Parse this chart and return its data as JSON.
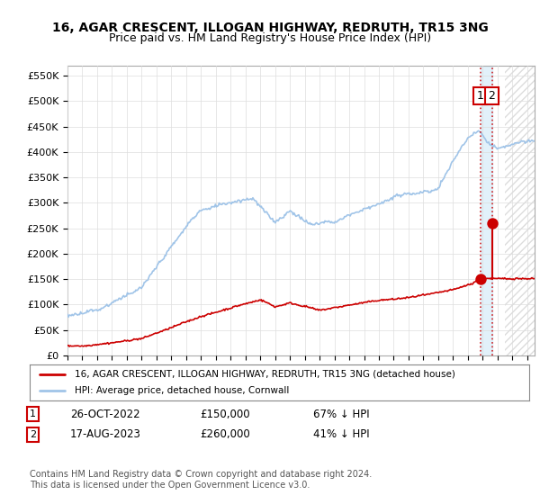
{
  "title_line1": "16, AGAR CRESCENT, ILLOGAN HIGHWAY, REDRUTH, TR15 3NG",
  "title_line2": "Price paid vs. HM Land Registry's House Price Index (HPI)",
  "ylabel_ticks": [
    "£0",
    "£50K",
    "£100K",
    "£150K",
    "£200K",
    "£250K",
    "£300K",
    "£350K",
    "£400K",
    "£450K",
    "£500K",
    "£550K"
  ],
  "ytick_values": [
    0,
    50000,
    100000,
    150000,
    200000,
    250000,
    300000,
    350000,
    400000,
    450000,
    500000,
    550000
  ],
  "ylim": [
    0,
    570000
  ],
  "hpi_color": "#a0c4e8",
  "price_color": "#cc0000",
  "sale1_x": 2022.83,
  "sale1_y": 150000,
  "sale2_x": 2023.62,
  "sale2_y": 260000,
  "sale1_date": "26-OCT-2022",
  "sale1_price": 150000,
  "sale1_label": "67% ↓ HPI",
  "sale2_date": "17-AUG-2023",
  "sale2_price": 260000,
  "sale2_label": "41% ↓ HPI",
  "legend_label1": "16, AGAR CRESCENT, ILLOGAN HIGHWAY, REDRUTH, TR15 3NG (detached house)",
  "legend_label2": "HPI: Average price, detached house, Cornwall",
  "footnote": "Contains HM Land Registry data © Crown copyright and database right 2024.\nThis data is licensed under the Open Government Licence v3.0.",
  "background_color": "#ffffff",
  "grid_color": "#dddddd",
  "annotation_box_color": "#cc0000",
  "shade_color": "#d0e8f8",
  "xlim_start": 1995,
  "xlim_end": 2026.5
}
